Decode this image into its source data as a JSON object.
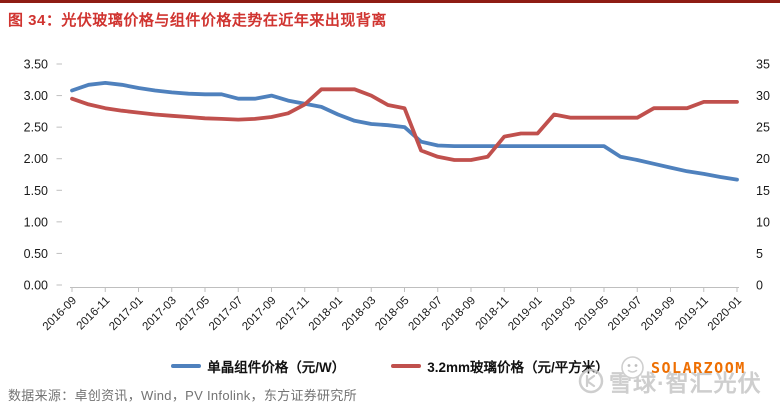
{
  "header": {
    "figure_title": "图 34：光伏玻璃价格与组件价格走势在近年来出现背离"
  },
  "footer": {
    "source": "数据来源：卓创资讯，Wind，PV Infolink，东方证券研究所"
  },
  "watermarks": {
    "xueqiu": "雪球·智汇光伏",
    "solarzoom": "SOLARZOOM"
  },
  "colors": {
    "title_red": "#d03430",
    "top_rule_red": "#8e1d14",
    "module_line_blue": "#4f81bd",
    "glass_line_red": "#c0504d",
    "axis_gray": "#bfbfbf",
    "source_text_gray": "#737373",
    "solarzoom_orange": "#ee6f02"
  },
  "chart_data": {
    "type": "line",
    "title": "光伏玻璃价格与组件价格走势在近年来出现背离",
    "grid": false,
    "legend_position": "bottom",
    "x": [
      "2016-09",
      "2016-10",
      "2016-11",
      "2016-12",
      "2017-01",
      "2017-02",
      "2017-03",
      "2017-04",
      "2017-05",
      "2017-06",
      "2017-07",
      "2017-08",
      "2017-09",
      "2017-10",
      "2017-11",
      "2017-12",
      "2018-01",
      "2018-02",
      "2018-03",
      "2018-04",
      "2018-05",
      "2018-06",
      "2018-07",
      "2018-08",
      "2018-09",
      "2018-10",
      "2018-11",
      "2018-12",
      "2019-01",
      "2019-02",
      "2019-03",
      "2019-04",
      "2019-05",
      "2019-06",
      "2019-07",
      "2019-08",
      "2019-09",
      "2019-10",
      "2019-11",
      "2019-12",
      "2020-01"
    ],
    "x_tick_labels": [
      "2016-09",
      "2016-11",
      "2017-01",
      "2017-03",
      "2017-05",
      "2017-07",
      "2017-09",
      "2017-11",
      "2018-01",
      "2018-03",
      "2018-05",
      "2018-07",
      "2018-09",
      "2018-11",
      "2019-01",
      "2019-03",
      "2019-05",
      "2019-07",
      "2019-09",
      "2019-11",
      "2020-01"
    ],
    "left_axis": {
      "min": 0,
      "max": 3.5,
      "ticks": [
        "3.50",
        "3.00",
        "2.50",
        "2.00",
        "1.50",
        "1.00",
        "0.50",
        "0.00"
      ]
    },
    "right_axis": {
      "min": 0,
      "max": 35,
      "ticks": [
        "35",
        "30",
        "25",
        "20",
        "15",
        "10",
        "5",
        "0"
      ]
    },
    "series": [
      {
        "name": "单晶组件价格（元/W）",
        "axis": "left",
        "color": "#4f81bd",
        "values": [
          3.08,
          3.17,
          3.2,
          3.17,
          3.12,
          3.08,
          3.05,
          3.03,
          3.02,
          3.02,
          2.95,
          2.95,
          3.0,
          2.92,
          2.87,
          2.82,
          2.7,
          2.6,
          2.55,
          2.53,
          2.5,
          2.27,
          2.21,
          2.2,
          2.2,
          2.2,
          2.2,
          2.2,
          2.2,
          2.2,
          2.2,
          2.2,
          2.2,
          2.03,
          1.98,
          1.92,
          1.86,
          1.8,
          1.76,
          1.71,
          1.67
        ]
      },
      {
        "name": "3.2mm玻璃价格（元/平方米）",
        "axis": "right",
        "color": "#c0504d",
        "values": [
          29.5,
          28.6,
          28.0,
          27.6,
          27.3,
          27.0,
          26.8,
          26.6,
          26.4,
          26.3,
          26.2,
          26.3,
          26.6,
          27.2,
          28.6,
          31.0,
          31.0,
          31.0,
          30.0,
          28.5,
          28.0,
          21.3,
          20.3,
          19.8,
          19.8,
          20.3,
          23.5,
          24.0,
          24.0,
          27.0,
          26.5,
          26.5,
          26.5,
          26.5,
          26.5,
          28.0,
          28.0,
          28.0,
          29.0,
          29.0,
          29.0
        ]
      }
    ]
  }
}
